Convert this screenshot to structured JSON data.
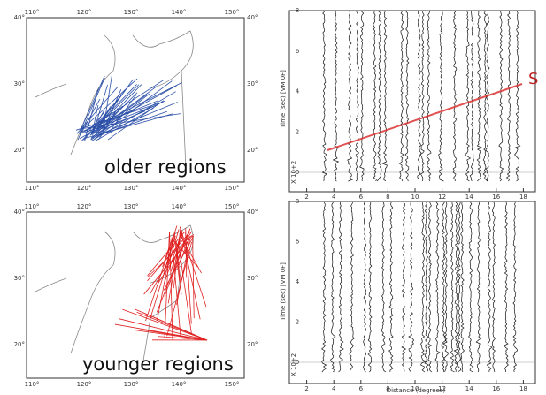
{
  "maps": [
    {
      "label": "older regions",
      "lon_ticks": [
        "110°",
        "120°",
        "130°",
        "140°",
        "150°"
      ],
      "lat_ticks_left": [
        "40°",
        "30°",
        "20°"
      ],
      "lat_ticks_right": [
        "40°",
        "30°",
        "20°"
      ]
    },
    {
      "label": "younger regions",
      "lon_ticks": [
        "110°",
        "120°",
        "130°",
        "140°",
        "150°"
      ],
      "lat_ticks_left": [
        "40°",
        "30°",
        "20°"
      ],
      "lat_ticks_right": [
        "40°",
        "30°",
        "20°"
      ]
    }
  ],
  "sections": [
    {
      "phase_label": "S",
      "y_label": "Time (sec)  [VM 0F]",
      "scale_label": "X 10+2",
      "yticks": [
        "0",
        "2",
        "4",
        "6",
        "8"
      ],
      "xticks": [
        "2",
        "4",
        "6",
        "8",
        "10",
        "12",
        "14",
        "16",
        "18"
      ]
    },
    {
      "y_label": "Time (sec)  [VM 0F]",
      "scale_label": "X 10+2",
      "x_label": "Distance (degrees)",
      "yticks": [
        "0",
        "2",
        "4",
        "6",
        "8"
      ],
      "xticks": [
        "2",
        "4",
        "6",
        "8",
        "10",
        "12",
        "14",
        "16",
        "18"
      ]
    }
  ]
}
